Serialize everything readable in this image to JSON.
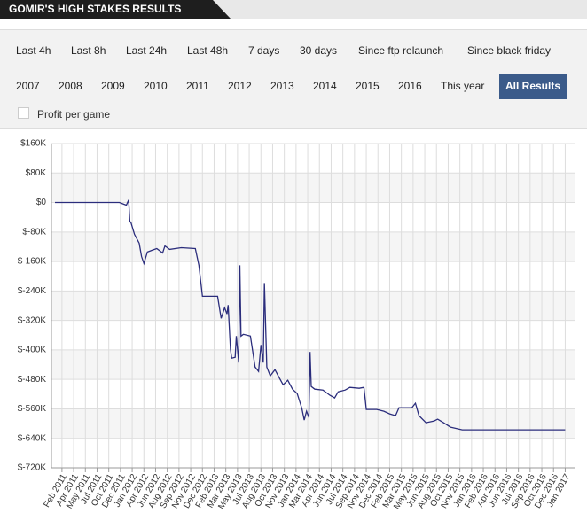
{
  "header": {
    "title": "GOMIR'S HIGH STAKES RESULTS"
  },
  "filters": {
    "periods": [
      "Last 4h",
      "Last 8h",
      "Last 24h",
      "Last 48h",
      "7 days",
      "30 days",
      "Since ftp relaunch",
      "Since black friday"
    ],
    "years": [
      "2007",
      "2008",
      "2009",
      "2010",
      "2011",
      "2012",
      "2013",
      "2014",
      "2015",
      "2016",
      "This year"
    ],
    "active": "All Results"
  },
  "checkbox": {
    "label": "Profit per game"
  },
  "chart_data": {
    "type": "line",
    "color": "#2b2d7c",
    "ylim": [
      -720000,
      160000
    ],
    "yticks": [
      {
        "value": 160000,
        "label": "$160K"
      },
      {
        "value": 80000,
        "label": "$80K"
      },
      {
        "value": 0,
        "label": "$0"
      },
      {
        "value": -80000,
        "label": "$-80K"
      },
      {
        "value": -160000,
        "label": "$-160K"
      },
      {
        "value": -240000,
        "label": "$-240K"
      },
      {
        "value": -320000,
        "label": "$-320K"
      },
      {
        "value": -400000,
        "label": "$-400K"
      },
      {
        "value": -480000,
        "label": "$-480K"
      },
      {
        "value": -560000,
        "label": "$-560K"
      },
      {
        "value": -640000,
        "label": "$-640K"
      },
      {
        "value": -720000,
        "label": "$-720K"
      }
    ],
    "xlim": [
      -0.9,
      43.8
    ],
    "xticks": [
      {
        "value": 0,
        "label": "Feb 2011"
      },
      {
        "value": 1,
        "label": "Apr 2011"
      },
      {
        "value": 2,
        "label": "May 2011"
      },
      {
        "value": 3,
        "label": "Jul 2011"
      },
      {
        "value": 4,
        "label": "Oct 2011"
      },
      {
        "value": 5,
        "label": "Dec 2011"
      },
      {
        "value": 6,
        "label": "Jan 2012"
      },
      {
        "value": 7,
        "label": "Apr 2012"
      },
      {
        "value": 8,
        "label": "Jun 2012"
      },
      {
        "value": 9,
        "label": "Aug 2012"
      },
      {
        "value": 10,
        "label": "Sep 2012"
      },
      {
        "value": 11,
        "label": "Nov 2012"
      },
      {
        "value": 12,
        "label": "Dec 2012"
      },
      {
        "value": 13,
        "label": "Feb 2013"
      },
      {
        "value": 14,
        "label": "Mar 2013"
      },
      {
        "value": 15,
        "label": "May 2013"
      },
      {
        "value": 16,
        "label": "Jul 2013"
      },
      {
        "value": 17,
        "label": "Aug 2013"
      },
      {
        "value": 18,
        "label": "Oct 2013"
      },
      {
        "value": 19,
        "label": "Nov 2013"
      },
      {
        "value": 20,
        "label": "Jan 2014"
      },
      {
        "value": 21,
        "label": "Mar 2014"
      },
      {
        "value": 22,
        "label": "Apr 2014"
      },
      {
        "value": 23,
        "label": "Jun 2014"
      },
      {
        "value": 24,
        "label": "Jul 2014"
      },
      {
        "value": 25,
        "label": "Sep 2014"
      },
      {
        "value": 26,
        "label": "Nov 2014"
      },
      {
        "value": 27,
        "label": "Dec 2014"
      },
      {
        "value": 28,
        "label": "Feb 2015"
      },
      {
        "value": 29,
        "label": "Mar 2015"
      },
      {
        "value": 30,
        "label": "May 2015"
      },
      {
        "value": 31,
        "label": "Jun 2015"
      },
      {
        "value": 32,
        "label": "Aug 2015"
      },
      {
        "value": 33,
        "label": "Oct 2015"
      },
      {
        "value": 34,
        "label": "Nov 2015"
      },
      {
        "value": 35,
        "label": "Jan 2016"
      },
      {
        "value": 36,
        "label": "Feb 2016"
      },
      {
        "value": 37,
        "label": "Apr 2016"
      },
      {
        "value": 38,
        "label": "Jun 2016"
      },
      {
        "value": 39,
        "label": "Jul 2016"
      },
      {
        "value": 40,
        "label": "Sep 2016"
      },
      {
        "value": 41,
        "label": "Oct 2016"
      },
      {
        "value": 42,
        "label": "Dec 2016"
      },
      {
        "value": 43,
        "label": "Jan 2017"
      }
    ],
    "grid": true,
    "x": [
      -0.6,
      1.5,
      3.6,
      4.9,
      5.5,
      5.7,
      5.8,
      5.9,
      6.2,
      6.6,
      6.8,
      7.0,
      7.3,
      7.7,
      8.1,
      8.6,
      8.8,
      9.2,
      10.2,
      11.4,
      11.7,
      12.0,
      12.5,
      13.3,
      13.6,
      13.9,
      14.1,
      14.2,
      14.4,
      14.5,
      14.8,
      14.9,
      15.1,
      15.2,
      15.3,
      15.5,
      16.1,
      16.5,
      16.8,
      17.0,
      17.2,
      17.3,
      17.5,
      17.8,
      18.2,
      18.6,
      18.9,
      19.3,
      19.7,
      20.1,
      20.5,
      20.7,
      20.9,
      21.1,
      21.2,
      21.3,
      21.6,
      22.3,
      22.9,
      23.3,
      23.6,
      24.2,
      24.6,
      25.4,
      25.8,
      26.0,
      26.9,
      27.5,
      28.0,
      28.5,
      28.8,
      29.9,
      30.2,
      30.5,
      31.1,
      31.8,
      32.1,
      32.6,
      33.2,
      34.2,
      36.4,
      38.6,
      40.8,
      43.0
    ],
    "values": [
      0,
      0,
      0,
      0,
      -7200,
      7200,
      -50400,
      -55200,
      -86400,
      -110400,
      -146400,
      -165600,
      -134400,
      -129600,
      -124800,
      -136800,
      -117600,
      -127200,
      -122400,
      -124800,
      -170400,
      -254400,
      -254400,
      -254400,
      -314400,
      -285600,
      -302400,
      -278400,
      -398400,
      -422400,
      -420000,
      -362400,
      -434400,
      -170400,
      -362400,
      -357600,
      -362400,
      -446400,
      -458400,
      -386400,
      -434400,
      -218400,
      -446400,
      -470400,
      -453600,
      -477600,
      -494400,
      -482400,
      -506400,
      -518400,
      -559200,
      -590400,
      -566400,
      -583200,
      -405600,
      -499200,
      -506400,
      -508800,
      -523200,
      -530400,
      -513600,
      -508800,
      -501600,
      -504000,
      -501600,
      -561600,
      -561600,
      -566400,
      -573600,
      -578400,
      -556800,
      -556800,
      -544800,
      -578400,
      -597600,
      -592800,
      -588000,
      -597600,
      -609600,
      -616800,
      -616800,
      -616800,
      -616800,
      -616800
    ]
  }
}
